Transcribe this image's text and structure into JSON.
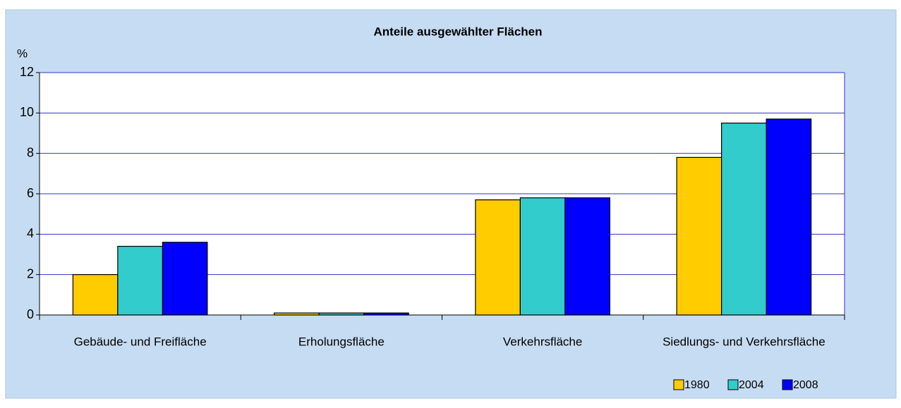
{
  "chart_data": {
    "type": "bar",
    "title": "Anteile ausgewählter Flächen",
    "y_label": "%",
    "categories": [
      "Gebäude- und Freifläche",
      "Erholungsfläche",
      "Verkehrsfläche",
      "Siedlungs- und Verkehrsfläche"
    ],
    "series": [
      {
        "name": "1980",
        "color": "#ffcc00",
        "values": [
          2.0,
          0.1,
          5.7,
          7.8
        ]
      },
      {
        "name": "2004",
        "color": "#33cccc",
        "values": [
          3.4,
          0.1,
          5.8,
          9.5
        ]
      },
      {
        "name": "2008",
        "color": "#0000ff",
        "values": [
          3.6,
          0.1,
          5.8,
          9.7
        ]
      }
    ],
    "ylim": [
      0,
      12
    ],
    "yticks": [
      0,
      2,
      4,
      6,
      8,
      10,
      12
    ],
    "grid": true,
    "legend": "bottom-right"
  }
}
